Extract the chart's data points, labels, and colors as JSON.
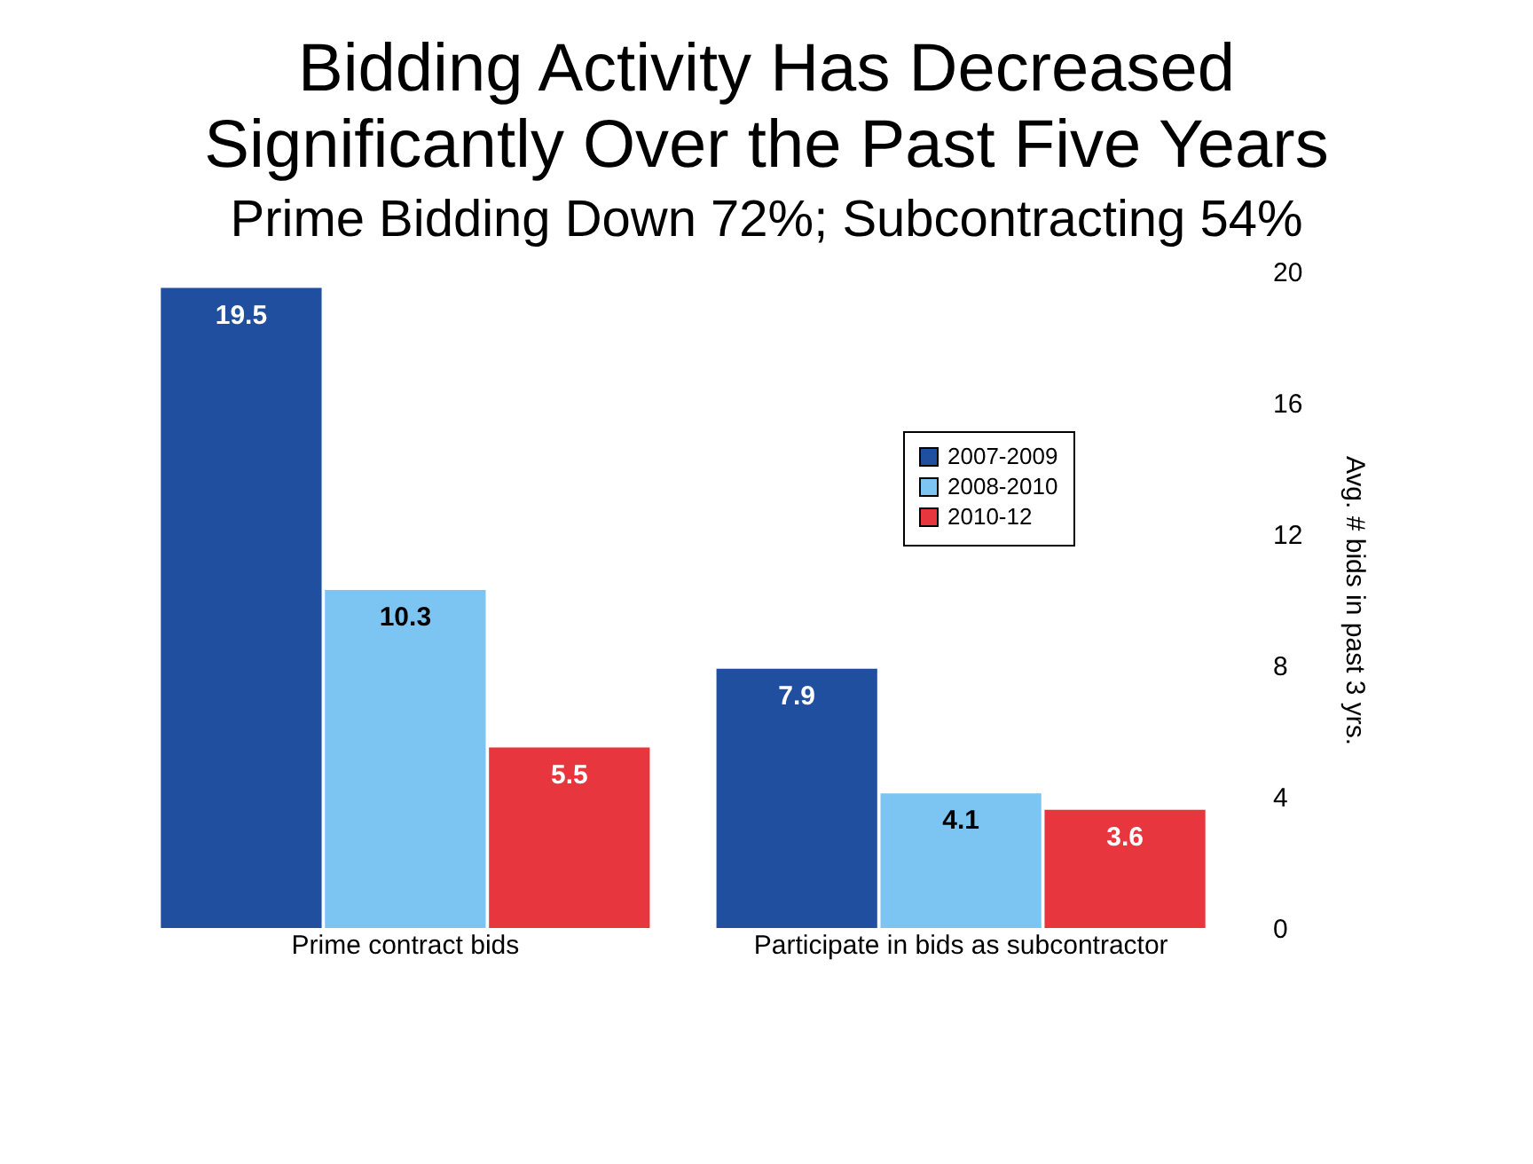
{
  "chart_data": {
    "type": "bar",
    "title": "Bidding Activity Has Decreased Significantly Over the Past Five Years",
    "subtitle": "Prime Bidding Down 72%; Subcontracting 54%",
    "ylabel": "Avg. # bids in past 3 yrs.",
    "categories": [
      "Prime contract bids",
      "Participate in bids as subcontractor"
    ],
    "series": [
      {
        "name": "2007-2009",
        "color": "#1f4f9e",
        "values": [
          19.5,
          7.9
        ]
      },
      {
        "name": "2008-2010",
        "color": "#7cc4f2",
        "values": [
          10.3,
          4.1
        ]
      },
      {
        "name": "2010-12",
        "color": "#e8363e",
        "values": [
          5.5,
          3.6
        ]
      }
    ],
    "ylim": [
      0,
      20
    ],
    "yticks": [
      0,
      4,
      8,
      12,
      16,
      20
    ],
    "grid": false,
    "legend": "top right",
    "data_labels": true
  }
}
